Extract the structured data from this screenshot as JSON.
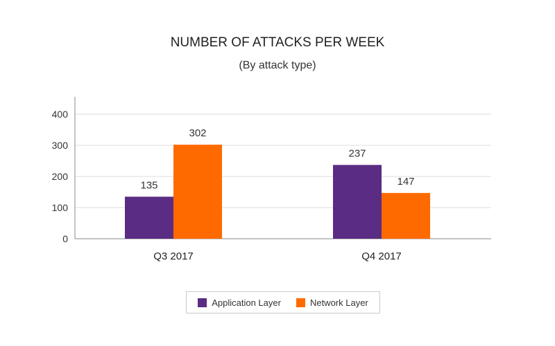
{
  "chart_data": {
    "type": "bar",
    "title": "NUMBER OF ATTACKS PER WEEK",
    "subtitle": "(By attack type)",
    "categories": [
      "Q3 2017",
      "Q4 2017"
    ],
    "series": [
      {
        "name": "Application Layer",
        "color": "#5b2c83",
        "values": [
          135,
          237
        ]
      },
      {
        "name": "Network Layer",
        "color": "#ff6a00",
        "values": [
          302,
          147
        ]
      }
    ],
    "y_ticks": [
      "0",
      "100",
      "200",
      "300",
      "400"
    ],
    "ylim": [
      0,
      400
    ],
    "grid": true,
    "legend_position": "bottom-center",
    "show_data_labels": true
  }
}
